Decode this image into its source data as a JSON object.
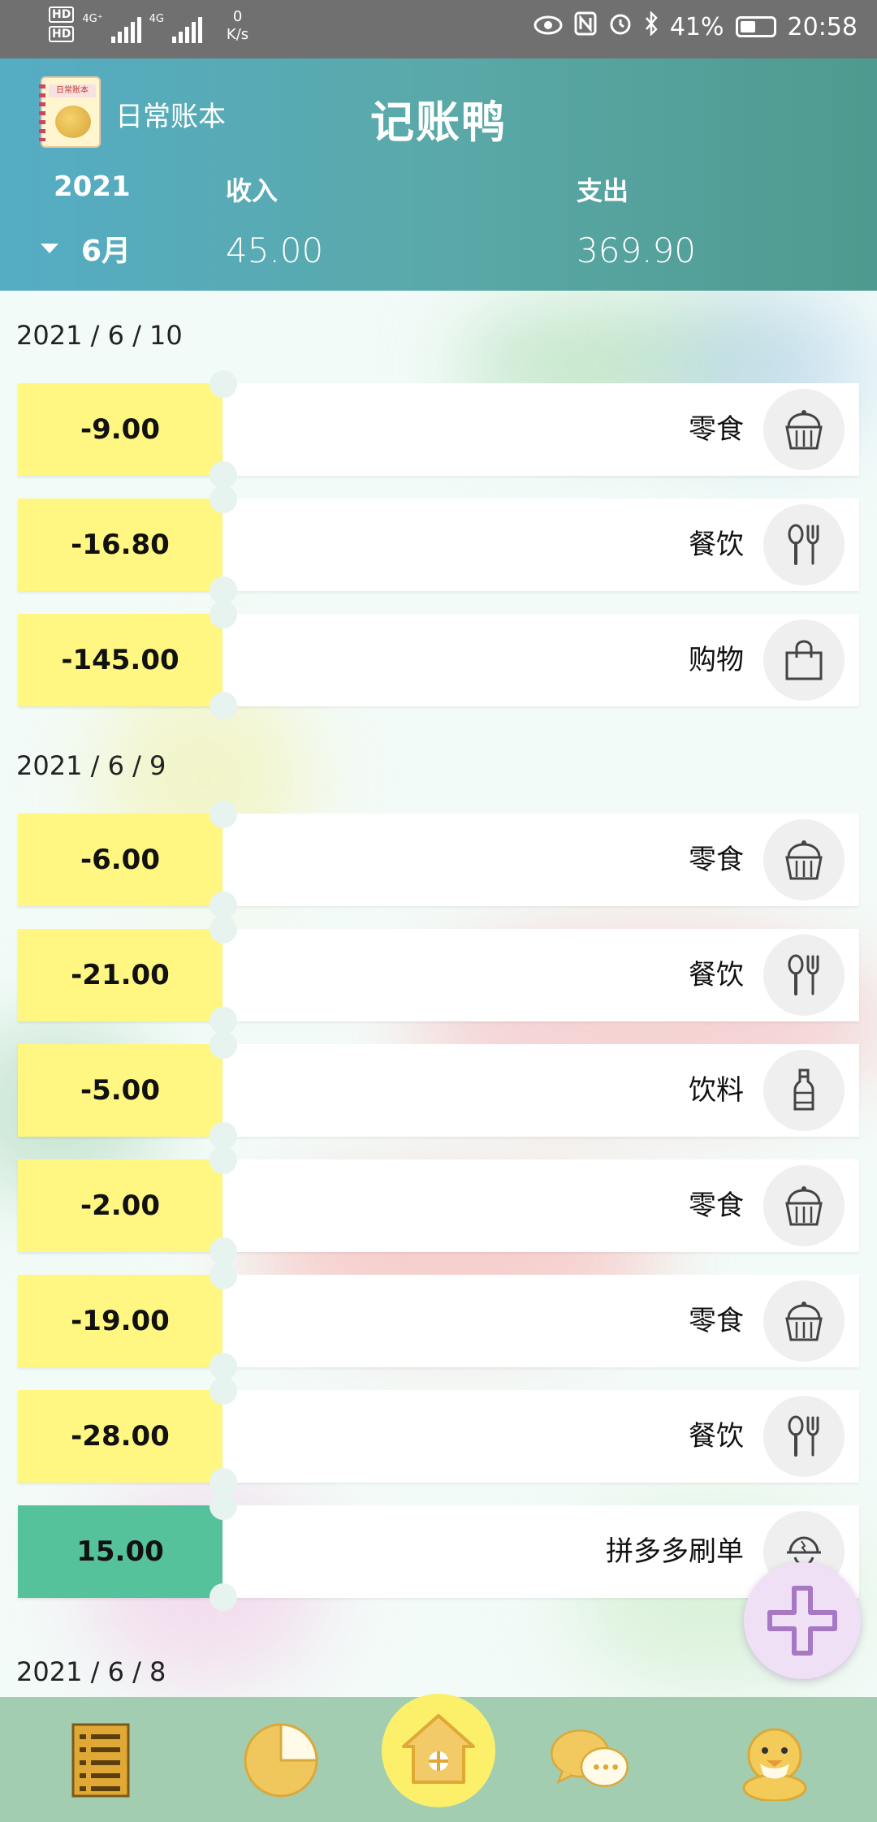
{
  "status_bar": {
    "hd1": "HD",
    "hd2": "HD",
    "net1": "4G⁺",
    "net2": "4G",
    "speed_value": "0",
    "speed_unit": "K/s",
    "battery": "41%",
    "time": "20:58"
  },
  "header": {
    "account_name": "日常账本",
    "app_title": "记账鸭",
    "year": "2021",
    "month": "6月",
    "income_label": "收入",
    "income_value": "45.00",
    "expense_label": "支出",
    "expense_value": "369.90"
  },
  "groups": [
    {
      "date": "2021 / 6 / 10",
      "records": [
        {
          "amount": "-9.00",
          "category": "零食",
          "icon": "cupcake-icon",
          "type": "expense"
        },
        {
          "amount": "-16.80",
          "category": "餐饮",
          "icon": "spoon-fork-icon",
          "type": "expense"
        },
        {
          "amount": "-145.00",
          "category": "购物",
          "icon": "shopping-bag-icon",
          "type": "expense"
        }
      ]
    },
    {
      "date": "2021 / 6 / 9",
      "records": [
        {
          "amount": "-6.00",
          "category": "零食",
          "icon": "cupcake-icon",
          "type": "expense"
        },
        {
          "amount": "-21.00",
          "category": "餐饮",
          "icon": "spoon-fork-icon",
          "type": "expense"
        },
        {
          "amount": "-5.00",
          "category": "饮料",
          "icon": "bottle-icon",
          "type": "expense"
        },
        {
          "amount": "-2.00",
          "category": "零食",
          "icon": "cupcake-icon",
          "type": "expense"
        },
        {
          "amount": "-19.00",
          "category": "零食",
          "icon": "cupcake-icon",
          "type": "expense"
        },
        {
          "amount": "-28.00",
          "category": "餐饮",
          "icon": "spoon-fork-icon",
          "type": "expense"
        },
        {
          "amount": "15.00",
          "category": "拼多多刷单",
          "icon": "worker-helmet-icon",
          "type": "income"
        }
      ]
    },
    {
      "date": "2021 / 6 / 8",
      "records": []
    }
  ],
  "colors": {
    "header_start": "#55adc4",
    "header_end": "#4f9a8f",
    "expense_amount_bg": "#fff781",
    "income_amount_bg": "#56c29c",
    "bottom_nav_bg": "#a3cdb1",
    "home_button_bg": "#fcf06a",
    "fab_bg": "#efe0f6",
    "fab_icon": "#a779c4"
  },
  "bottom_nav": [
    {
      "name": "ledger-list-icon"
    },
    {
      "name": "pie-chart-icon"
    },
    {
      "name": "home-icon"
    },
    {
      "name": "chat-bubbles-icon"
    },
    {
      "name": "duck-profile-icon"
    }
  ],
  "fab": {
    "icon": "plus-icon"
  }
}
